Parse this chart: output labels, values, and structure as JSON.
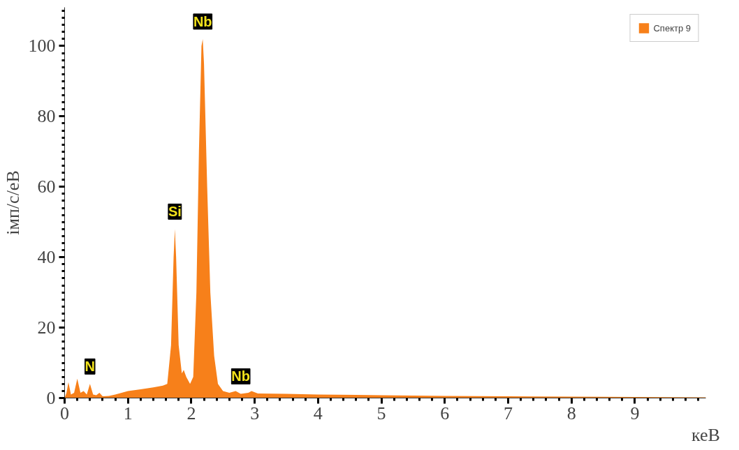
{
  "chart_data": {
    "type": "area",
    "xlabel": "кеВ",
    "ylabel": "імп/с/еВ",
    "xlim": [
      0,
      10.12
    ],
    "ylim": [
      0,
      111
    ],
    "xticks": [
      0,
      1,
      2,
      3,
      4,
      5,
      6,
      7,
      8,
      9
    ],
    "yticks": [
      0,
      20,
      40,
      60,
      80,
      100
    ],
    "grid": false,
    "legend": "top right",
    "x": [
      0,
      0.03,
      0.06,
      0.1,
      0.15,
      0.2,
      0.25,
      0.3,
      0.35,
      0.4,
      0.45,
      0.5,
      0.55,
      0.6,
      0.7,
      0.8,
      1.0,
      1.2,
      1.4,
      1.55,
      1.62,
      1.68,
      1.72,
      1.74,
      1.76,
      1.8,
      1.85,
      1.88,
      1.92,
      1.98,
      2.03,
      2.08,
      2.12,
      2.16,
      2.18,
      2.2,
      2.25,
      2.3,
      2.36,
      2.42,
      2.5,
      2.6,
      2.7,
      2.78,
      2.9,
      2.95,
      3.05,
      3.5,
      4,
      5,
      6,
      7,
      8,
      9,
      10.12
    ],
    "series": [
      {
        "name": "Спектр 9",
        "color": "#f7801a",
        "values": [
          0,
          1.5,
          4.5,
          1,
          1.5,
          5.5,
          1.5,
          2,
          1,
          4,
          1,
          0.8,
          1.5,
          0.5,
          0.6,
          1,
          2,
          2.5,
          3,
          3.5,
          4,
          15,
          40,
          48,
          40,
          15,
          7,
          8,
          6,
          4,
          6,
          30,
          70,
          100,
          102,
          95,
          60,
          30,
          12,
          4,
          2,
          1.5,
          2,
          1.2,
          1.5,
          2,
          1.3,
          1.2,
          1,
          0.8,
          0.6,
          0.5,
          0.4,
          0.3,
          0.2
        ]
      }
    ],
    "annotations": [
      {
        "text": "N",
        "x": 0.4,
        "y": 4
      },
      {
        "text": "Si",
        "x": 1.74,
        "y": 48
      },
      {
        "text": "Nb",
        "x": 2.18,
        "y": 102
      },
      {
        "text": "Nb",
        "x": 2.78,
        "y": 1.2
      }
    ]
  }
}
